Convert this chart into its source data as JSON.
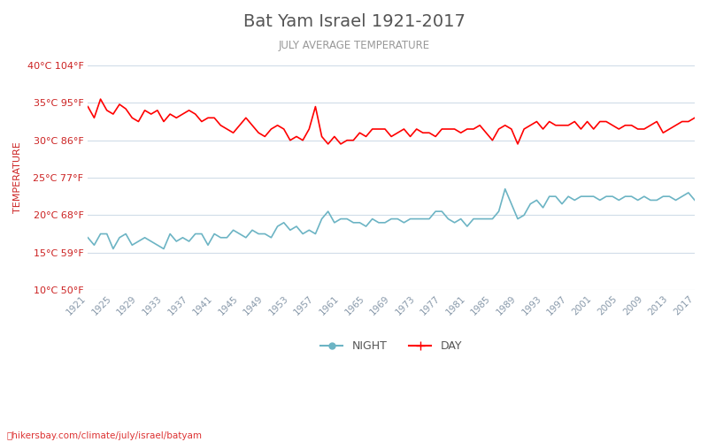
{
  "title": "Bat Yam Israel 1921-2017",
  "subtitle": "JULY AVERAGE TEMPERATURE",
  "ylabel": "TEMPERATURE",
  "years": [
    1921,
    1922,
    1923,
    1924,
    1925,
    1926,
    1927,
    1928,
    1929,
    1930,
    1931,
    1932,
    1933,
    1934,
    1935,
    1936,
    1937,
    1938,
    1939,
    1940,
    1941,
    1942,
    1943,
    1944,
    1945,
    1946,
    1947,
    1948,
    1949,
    1950,
    1951,
    1952,
    1953,
    1954,
    1955,
    1956,
    1957,
    1958,
    1959,
    1960,
    1961,
    1962,
    1963,
    1964,
    1965,
    1966,
    1967,
    1968,
    1969,
    1970,
    1971,
    1972,
    1973,
    1974,
    1975,
    1976,
    1977,
    1978,
    1979,
    1980,
    1981,
    1982,
    1983,
    1984,
    1985,
    1986,
    1987,
    1988,
    1989,
    1990,
    1991,
    1992,
    1993,
    1994,
    1995,
    1996,
    1997,
    1998,
    1999,
    2000,
    2001,
    2002,
    2003,
    2004,
    2005,
    2006,
    2007,
    2008,
    2009,
    2010,
    2011,
    2012,
    2013,
    2014,
    2015,
    2016,
    2017
  ],
  "day_temps": [
    34.5,
    33.0,
    35.5,
    34.0,
    33.5,
    34.8,
    34.2,
    33.0,
    32.5,
    34.0,
    33.5,
    34.0,
    32.5,
    33.5,
    33.0,
    33.5,
    34.0,
    33.5,
    32.5,
    33.0,
    33.0,
    32.0,
    31.5,
    31.0,
    32.0,
    33.0,
    32.0,
    31.0,
    30.5,
    31.5,
    32.0,
    31.5,
    30.0,
    30.5,
    30.0,
    31.5,
    34.5,
    30.5,
    29.5,
    30.5,
    29.5,
    30.0,
    30.0,
    31.0,
    30.5,
    31.5,
    31.5,
    31.5,
    30.5,
    31.0,
    31.5,
    30.5,
    31.5,
    31.0,
    31.0,
    30.5,
    31.5,
    31.5,
    31.5,
    31.0,
    31.5,
    31.5,
    32.0,
    31.0,
    30.0,
    31.5,
    32.0,
    31.5,
    29.5,
    31.5,
    32.0,
    32.5,
    31.5,
    32.5,
    32.0,
    32.0,
    32.0,
    32.5,
    31.5,
    32.5,
    31.5,
    32.5,
    32.5,
    32.0,
    31.5,
    32.0,
    32.0,
    31.5,
    31.5,
    32.0,
    32.5,
    31.0,
    31.5,
    32.0,
    32.5,
    32.5,
    33.0
  ],
  "night_temps": [
    17.0,
    16.0,
    17.5,
    17.5,
    15.5,
    17.0,
    17.5,
    16.0,
    16.5,
    17.0,
    16.5,
    16.0,
    15.5,
    17.5,
    16.5,
    17.0,
    16.5,
    17.5,
    17.5,
    16.0,
    17.5,
    17.0,
    17.0,
    18.0,
    17.5,
    17.0,
    18.0,
    17.5,
    17.5,
    17.0,
    18.5,
    19.0,
    18.0,
    18.5,
    17.5,
    18.0,
    17.5,
    19.5,
    20.5,
    19.0,
    19.5,
    19.5,
    19.0,
    19.0,
    18.5,
    19.5,
    19.0,
    19.0,
    19.5,
    19.5,
    19.0,
    19.5,
    19.5,
    19.5,
    19.5,
    20.5,
    20.5,
    19.5,
    19.0,
    19.5,
    18.5,
    19.5,
    19.5,
    19.5,
    19.5,
    20.5,
    23.5,
    21.5,
    19.5,
    20.0,
    21.5,
    22.0,
    21.0,
    22.5,
    22.5,
    21.5,
    22.5,
    22.0,
    22.5,
    22.5,
    22.5,
    22.0,
    22.5,
    22.5,
    22.0,
    22.5,
    22.5,
    22.0,
    22.5,
    22.0,
    22.0,
    22.5,
    22.5,
    22.0,
    22.5,
    23.0,
    22.0
  ],
  "day_color": "#ff0000",
  "night_color": "#6cb4c4",
  "background_color": "#ffffff",
  "grid_color": "#d0dce8",
  "title_color": "#555555",
  "subtitle_color": "#999999",
  "ylabel_color": "#cc2222",
  "tick_label_color": "#cc2222",
  "xtick_label_color": "#8899aa",
  "yticks_celsius": [
    10,
    15,
    20,
    25,
    30,
    35,
    40
  ],
  "ytick_labels": [
    "10°C 50°F",
    "15°C 59°F",
    "20°C 68°F",
    "25°C 77°F",
    "30°C 86°F",
    "35°C 95°F",
    "40°C 104°F"
  ],
  "xtick_years": [
    1921,
    1925,
    1929,
    1933,
    1937,
    1941,
    1945,
    1949,
    1953,
    1957,
    1961,
    1965,
    1969,
    1973,
    1977,
    1981,
    1985,
    1989,
    1993,
    1997,
    2001,
    2005,
    2009,
    2013,
    2017
  ],
  "legend_night_label": "NIGHT",
  "legend_day_label": "DAY",
  "watermark": "hikersbay.com/climate/july/israel/batyam",
  "ylim": [
    10,
    40
  ],
  "line_width": 1.2
}
